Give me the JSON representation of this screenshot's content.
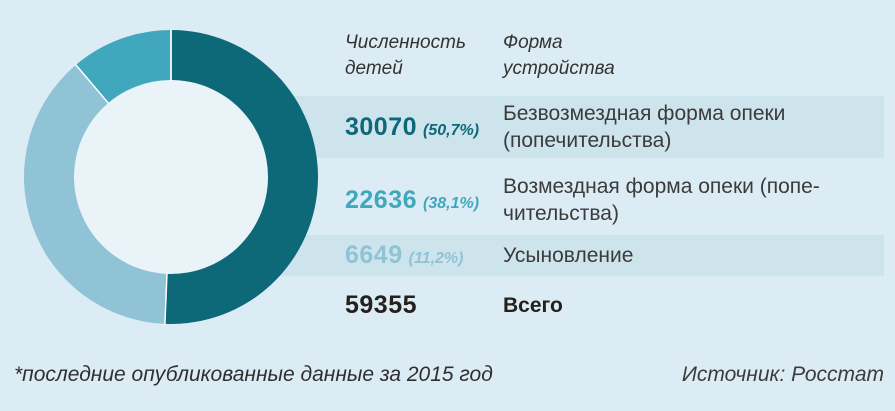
{
  "page": {
    "background_color": "#dcecf4",
    "band_color": "#cee4ed",
    "footnote": "*последние опубликованные данные за 2015 год",
    "source": "Источник: Росстат"
  },
  "table": {
    "header": {
      "col1": "Численность\nдетей",
      "col2": "Форма\nустройства"
    },
    "rows": [
      {
        "value": "30070",
        "percent": "(50,7%)",
        "label": "Безвозмездная форма опеки\n(попечительства)",
        "value_color": "#0d6878",
        "banded": true,
        "total": false
      },
      {
        "value": "22636",
        "percent": "(38,1%)",
        "label": "Возмездная форма опеки (попе-\nчительства)",
        "value_color": "#41a7bd",
        "banded": false,
        "total": false
      },
      {
        "value": "6649",
        "percent": "(11,2%)",
        "label": "Усыновление",
        "value_color": "#8fc3d5",
        "banded": true,
        "total": false
      },
      {
        "value": "59355",
        "percent": "",
        "label": "Всего",
        "value_color": "#26201d",
        "banded": false,
        "total": true
      }
    ]
  },
  "chart_data": {
    "type": "pie",
    "subtype": "donut",
    "title": "",
    "categories": [
      "Безвозмездная форма опеки (попечительства)",
      "Возмездная форма опеки (попечительства)",
      "Усыновление"
    ],
    "values": [
      30070,
      22636,
      6649
    ],
    "percents": [
      50.7,
      38.1,
      11.2
    ],
    "total": 59355,
    "segment_colors": [
      "#0d6878",
      "#8fc3d5",
      "#41a7bd"
    ],
    "hole_color": "#e9f3f8",
    "separator_color": "#ffffff",
    "start_angle_deg": 0,
    "clockwise": true,
    "inner_radius_ratio": 0.66,
    "legend_position": "none"
  }
}
